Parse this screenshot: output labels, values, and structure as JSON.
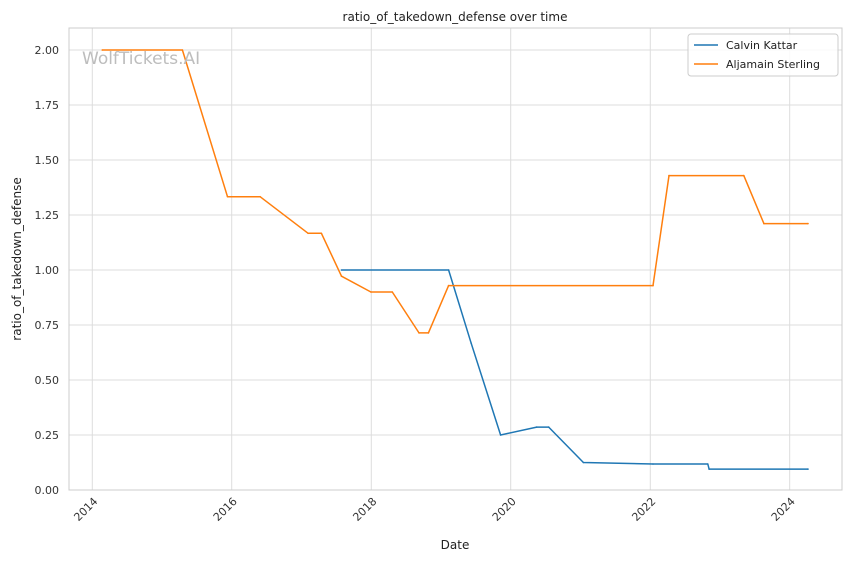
{
  "chart_data": {
    "type": "line",
    "title": "ratio_of_takedown_defense over time",
    "xlabel": "Date",
    "ylabel": "ratio_of_takedown_defense",
    "watermark": "WolfTickets.AI",
    "x_ticks": [
      "2014",
      "2016",
      "2018",
      "2020",
      "2022",
      "2024"
    ],
    "y_ticks": [
      "0.00",
      "0.25",
      "0.50",
      "0.75",
      "1.00",
      "1.25",
      "1.50",
      "1.75",
      "2.00"
    ],
    "xlim": [
      "2013-09-01",
      "2024-10-01"
    ],
    "ylim": [
      0,
      2.1
    ],
    "grid": true,
    "legend_position": "top-right",
    "series": [
      {
        "name": "Calvin Kattar",
        "color": "#1f77b4",
        "points": [
          [
            "2017-07-29",
            1.0
          ],
          [
            "2019-02-10",
            1.0
          ],
          [
            "2019-06-08",
            0.667
          ],
          [
            "2019-11-09",
            0.25
          ],
          [
            "2020-05-16",
            0.286
          ],
          [
            "2020-07-18",
            0.286
          ],
          [
            "2021-01-16",
            0.125
          ],
          [
            "2022-01-15",
            0.118
          ],
          [
            "2022-10-29",
            0.118
          ],
          [
            "2022-11-05",
            0.095
          ],
          [
            "2024-04-06",
            0.095
          ]
        ]
      },
      {
        "name": "Aljamain Sterling",
        "color": "#ff7f0e",
        "points": [
          [
            "2014-02-22",
            2.0
          ],
          [
            "2015-04-18",
            2.0
          ],
          [
            "2015-12-10",
            1.333
          ],
          [
            "2016-05-29",
            1.333
          ],
          [
            "2017-02-04",
            1.167
          ],
          [
            "2017-04-15",
            1.167
          ],
          [
            "2017-07-29",
            0.972
          ],
          [
            "2017-12-30",
            0.9
          ],
          [
            "2018-04-21",
            0.9
          ],
          [
            "2018-09-08",
            0.714
          ],
          [
            "2018-10-27",
            0.714
          ],
          [
            "2019-02-10",
            0.929
          ],
          [
            "2022-01-15",
            0.929
          ],
          [
            "2022-04-09",
            1.429
          ],
          [
            "2023-05-06",
            1.429
          ],
          [
            "2023-08-19",
            1.211
          ],
          [
            "2024-04-06",
            1.211
          ]
        ]
      }
    ]
  }
}
